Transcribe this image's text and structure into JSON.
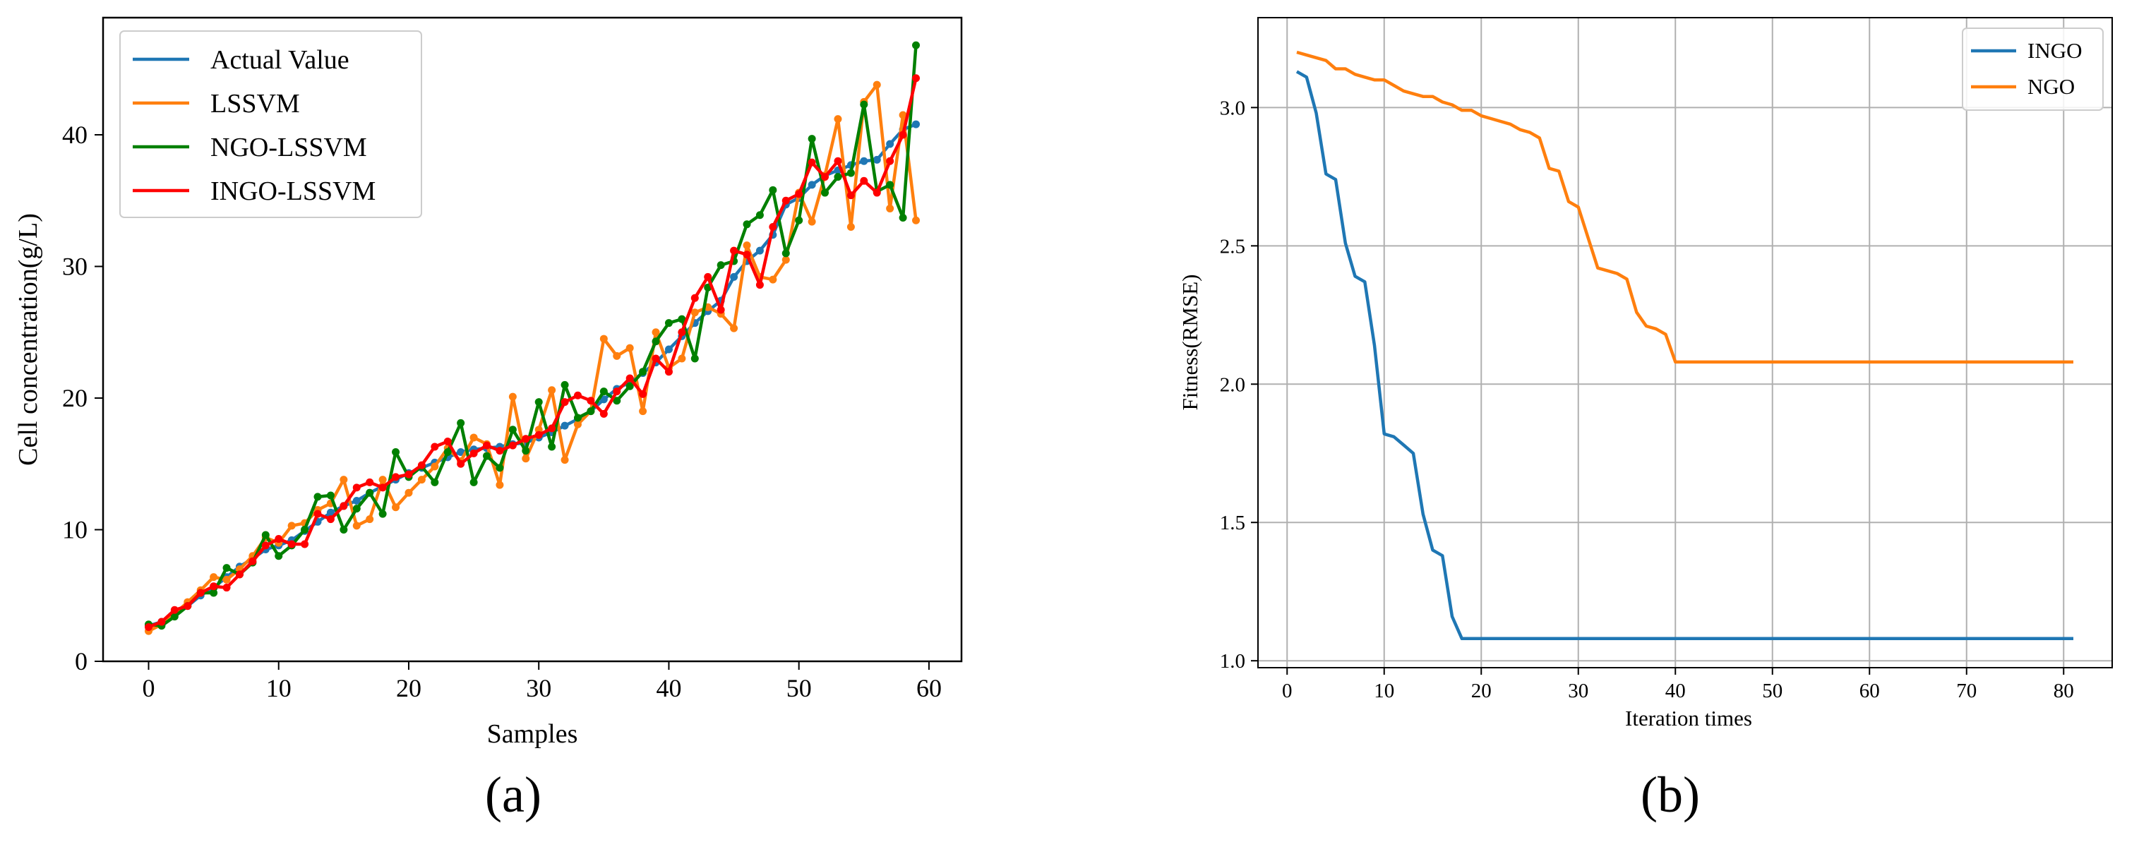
{
  "chart_data": [
    {
      "type": "line",
      "panel_label": "(a)",
      "title": "",
      "xlabel": "Samples",
      "ylabel": "Cell concentration(g/L)",
      "xlim": [
        -3.5,
        62.5
      ],
      "ylim": [
        0,
        48.9
      ],
      "xticks": [
        "0",
        "10",
        "20",
        "30",
        "40",
        "50",
        "60"
      ],
      "yticks": [
        "0",
        "10",
        "20",
        "30",
        "40"
      ],
      "grid": false,
      "legend_position": "top-left",
      "markers": true,
      "x": [
        0,
        1,
        2,
        3,
        4,
        5,
        6,
        7,
        8,
        9,
        10,
        11,
        12,
        13,
        14,
        15,
        16,
        17,
        18,
        19,
        20,
        21,
        22,
        23,
        24,
        25,
        26,
        27,
        28,
        29,
        30,
        31,
        32,
        33,
        34,
        35,
        36,
        37,
        38,
        39,
        40,
        41,
        42,
        43,
        44,
        45,
        46,
        47,
        48,
        49,
        50,
        51,
        52,
        53,
        54,
        55,
        56,
        57,
        58,
        59
      ],
      "series": [
        {
          "name": "Actual Value",
          "color": "#1f77b4",
          "values": [
            2.7,
            3.0,
            3.6,
            4.2,
            5.0,
            5.6,
            6.4,
            7.2,
            7.8,
            8.5,
            8.8,
            9.2,
            9.9,
            10.6,
            11.3,
            11.8,
            12.2,
            12.8,
            13.3,
            13.8,
            14.3,
            14.7,
            15.1,
            15.5,
            15.9,
            16.1,
            16.2,
            16.3,
            16.5,
            16.6,
            17.0,
            17.4,
            17.9,
            18.4,
            19.0,
            19.9,
            20.7,
            21.2,
            21.9,
            22.7,
            23.7,
            24.7,
            25.7,
            26.6,
            27.4,
            29.2,
            30.4,
            31.2,
            32.4,
            34.7,
            35.2,
            36.2,
            36.9,
            37.3,
            37.7,
            38.0,
            38.1,
            39.3,
            40.4,
            40.8
          ]
        },
        {
          "name": "LSSVM",
          "color": "#ff7f0e",
          "values": [
            2.3,
            2.8,
            3.6,
            4.5,
            5.4,
            6.4,
            6.2,
            7.0,
            8.0,
            9.4,
            9.0,
            10.3,
            10.5,
            11.5,
            12.0,
            13.8,
            10.3,
            10.8,
            13.8,
            11.7,
            12.8,
            13.8,
            14.8,
            16.2,
            15.2,
            17.0,
            16.5,
            13.4,
            20.1,
            15.4,
            17.6,
            20.6,
            15.3,
            18.0,
            19.0,
            24.5,
            23.2,
            23.8,
            19.0,
            25.0,
            22.3,
            23.0,
            26.5,
            26.9,
            26.4,
            25.3,
            31.6,
            29.2,
            29.0,
            30.5,
            35.6,
            33.4,
            36.9,
            41.2,
            33.0,
            42.5,
            43.8,
            34.4,
            41.5,
            33.5
          ]
        },
        {
          "name": "NGO-LSSVM",
          "color": "#008000",
          "values": [
            2.8,
            2.7,
            3.4,
            4.2,
            5.2,
            5.2,
            7.1,
            6.6,
            7.5,
            9.6,
            8.0,
            8.8,
            10.0,
            12.5,
            12.6,
            10.0,
            11.6,
            12.8,
            11.2,
            15.9,
            14.0,
            14.8,
            13.6,
            15.9,
            18.1,
            13.6,
            15.6,
            14.7,
            17.6,
            16.0,
            19.7,
            16.3,
            21.0,
            18.5,
            19.0,
            20.5,
            19.8,
            20.9,
            22.0,
            24.3,
            25.7,
            26.0,
            23.0,
            28.4,
            30.1,
            30.4,
            33.2,
            33.9,
            35.8,
            31.0,
            33.5,
            39.7,
            35.6,
            36.8,
            37.1,
            42.3,
            35.7,
            36.2,
            33.7,
            46.8
          ]
        },
        {
          "name": "INGO-LSSVM",
          "color": "#ff0000",
          "values": [
            2.6,
            3.0,
            3.9,
            4.2,
            5.2,
            5.7,
            5.6,
            6.6,
            7.6,
            8.8,
            9.3,
            8.9,
            8.9,
            11.2,
            10.8,
            11.8,
            13.2,
            13.6,
            13.2,
            14.0,
            14.2,
            14.9,
            16.3,
            16.7,
            15.0,
            15.8,
            16.4,
            16.0,
            16.4,
            16.9,
            17.2,
            17.7,
            19.7,
            20.2,
            19.8,
            18.8,
            20.5,
            21.5,
            20.3,
            23.0,
            22.0,
            25.0,
            27.6,
            29.2,
            26.7,
            31.2,
            30.9,
            28.6,
            33.0,
            35.0,
            35.5,
            37.9,
            36.8,
            38.0,
            35.4,
            36.5,
            35.6,
            38.0,
            40.0,
            44.3
          ]
        }
      ]
    },
    {
      "type": "line",
      "panel_label": "(b)",
      "title": "",
      "xlabel": "Iteration times",
      "ylabel": "Fitness(RMSE)",
      "xlim": [
        -3,
        85
      ],
      "ylim": [
        0.975,
        3.325
      ],
      "xticks": [
        "0",
        "10",
        "20",
        "30",
        "40",
        "50",
        "60",
        "70",
        "80"
      ],
      "yticks": [
        "1.0",
        "1.5",
        "2.0",
        "2.5",
        "3.0"
      ],
      "grid": true,
      "legend_position": "top-right",
      "markers": false,
      "series": [
        {
          "name": "INGO",
          "color": "#1f77b4",
          "x": [
            1,
            2,
            3,
            4,
            5,
            6,
            7,
            8,
            9,
            10,
            11,
            12,
            13,
            14,
            15,
            16,
            17,
            18,
            81
          ],
          "values": [
            3.13,
            3.11,
            2.98,
            2.76,
            2.74,
            2.51,
            2.39,
            2.37,
            2.14,
            1.82,
            1.81,
            1.78,
            1.75,
            1.53,
            1.4,
            1.38,
            1.16,
            1.08,
            1.08
          ]
        },
        {
          "name": "NGO",
          "color": "#ff7f0e",
          "x": [
            1,
            2,
            3,
            4,
            5,
            6,
            7,
            8,
            9,
            10,
            11,
            12,
            13,
            14,
            15,
            16,
            17,
            18,
            19,
            20,
            21,
            22,
            23,
            24,
            25,
            26,
            27,
            28,
            29,
            30,
            31,
            32,
            33,
            34,
            35,
            36,
            37,
            38,
            39,
            40,
            81
          ],
          "values": [
            3.2,
            3.19,
            3.18,
            3.17,
            3.14,
            3.14,
            3.12,
            3.11,
            3.1,
            3.1,
            3.08,
            3.06,
            3.05,
            3.04,
            3.04,
            3.02,
            3.01,
            2.99,
            2.99,
            2.97,
            2.96,
            2.95,
            2.94,
            2.92,
            2.91,
            2.89,
            2.78,
            2.77,
            2.66,
            2.64,
            2.53,
            2.42,
            2.41,
            2.4,
            2.38,
            2.26,
            2.21,
            2.2,
            2.18,
            2.08,
            2.08
          ]
        }
      ]
    }
  ]
}
